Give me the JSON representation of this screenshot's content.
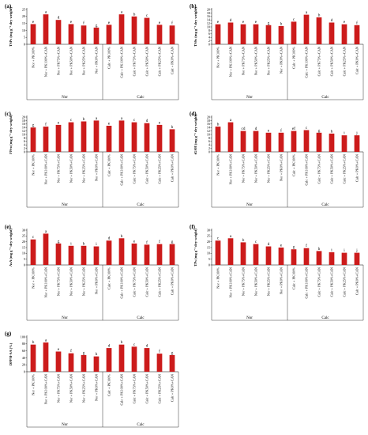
{
  "categories": [
    "Nor + PK100%",
    "Nor + PK100%+CAN",
    "Nor + PK75%+CAN",
    "Nor + PK50%+CAN",
    "Nor + PK25%+CAN",
    "Nor + PK0%+CAN",
    "Calc + PK100%",
    "Calc + PK100%+CAN",
    "Calc + PK75%+CAN",
    "Calc + PK50%+CAN",
    "Calc + PK25%+CAN",
    "Calc + PK0%+CAN"
  ],
  "groups": [
    "Nor",
    "Calc"
  ],
  "bar_color": "#cc1b1b",
  "chart_data": [
    {
      "type": "bar",
      "panel_label": "(a)",
      "ylabel": "TSPs (mg g⁻¹ dry weight)",
      "ylim": [
        0,
        25
      ],
      "yticks": [
        0,
        5,
        10,
        15,
        20,
        25
      ],
      "values": [
        14.5,
        21.5,
        17.5,
        14.5,
        13.5,
        12,
        14,
        21.5,
        20,
        19,
        14,
        13.5
      ],
      "letters": [
        "e",
        "a",
        "d",
        "e",
        "f",
        "g",
        "e",
        "a",
        "b",
        "c",
        "e",
        "f"
      ]
    },
    {
      "type": "bar",
      "panel_label": "(b)",
      "ylabel": "TSSs (mg g⁻¹ dry weight)",
      "ylim": [
        0,
        20
      ],
      "yticks": [
        0,
        2,
        4,
        6,
        8,
        10,
        12,
        14,
        16,
        18,
        20
      ],
      "values": [
        11.5,
        12.5,
        11.5,
        11.5,
        11,
        10.5,
        13,
        17,
        15.5,
        12.5,
        11.5,
        11
      ],
      "letters": [
        "e",
        "d",
        "e",
        "e",
        "g",
        "h",
        "c",
        "a",
        "b",
        "d",
        "e",
        "f"
      ]
    },
    {
      "type": "bar",
      "panel_label": "(c)",
      "ylabel": "FPro (mg g⁻¹ dry weight)",
      "ylim": [
        0,
        20
      ],
      "yticks": [
        0,
        2,
        4,
        6,
        8,
        10,
        12,
        14,
        16,
        18,
        20
      ],
      "values": [
        14,
        14.5,
        15.5,
        17,
        17.5,
        18,
        15,
        18,
        17,
        16.5,
        15.5,
        13
      ],
      "letters": [
        "g",
        "f",
        "e",
        "c",
        "b",
        "a",
        "e",
        "a",
        "c",
        "d",
        "e",
        "h"
      ]
    },
    {
      "type": "bar",
      "panel_label": "(d)",
      "ylabel": "tGSH (mg g⁻¹ dry weight)",
      "ylim": [
        0,
        20
      ],
      "yticks": [
        0,
        2,
        4,
        6,
        8,
        10,
        12,
        14,
        16,
        18,
        20
      ],
      "values": [
        14.5,
        17,
        12,
        12,
        11,
        11,
        12,
        12.5,
        11,
        10.5,
        9.5,
        9.5
      ],
      "letters": [
        "b",
        "a",
        "cd",
        "d",
        "e",
        "f",
        "ef",
        "c",
        "g",
        "h",
        "i",
        "j"
      ]
    },
    {
      "type": "bar",
      "panel_label": "(e)",
      "ylabel": "AsA (mg g⁻¹ dry weight)",
      "ylim": [
        0,
        30
      ],
      "yticks": [
        0,
        5,
        10,
        15,
        20,
        25,
        30
      ],
      "values": [
        22,
        27,
        18.5,
        16.5,
        16.5,
        16,
        21,
        23,
        18.5,
        17.5,
        18,
        18
      ],
      "letters": [
        "c",
        "a",
        "g",
        "i",
        "h",
        "i",
        "d",
        "b",
        "e",
        "f",
        "f",
        "g"
      ]
    },
    {
      "type": "bar",
      "panel_label": "(f)",
      "ylabel": "TPs (mg g⁻¹ dry weight)",
      "ylim": [
        0,
        30
      ],
      "yticks": [
        0,
        5,
        10,
        15,
        20,
        25,
        30
      ],
      "values": [
        21,
        23,
        19.5,
        18,
        16,
        15,
        13.5,
        14.5,
        12,
        11,
        10.5,
        10.5
      ],
      "letters": [
        "c",
        "a",
        "b",
        "c",
        "d",
        "e",
        "g",
        "f",
        "h",
        "i",
        "i",
        "j"
      ]
    },
    {
      "type": "bar",
      "panel_label": "(g)",
      "ylabel": "DPPH-SA (%)",
      "ylim": [
        0,
        100
      ],
      "yticks": [
        0,
        20,
        40,
        60,
        80,
        100
      ],
      "values": [
        78,
        84,
        58,
        53,
        48,
        44,
        68,
        78,
        72,
        68,
        52,
        48
      ],
      "letters": [
        "b",
        "a",
        "e",
        "f",
        "g",
        "h",
        "d",
        "b",
        "c",
        "d",
        "f",
        "g"
      ]
    }
  ]
}
